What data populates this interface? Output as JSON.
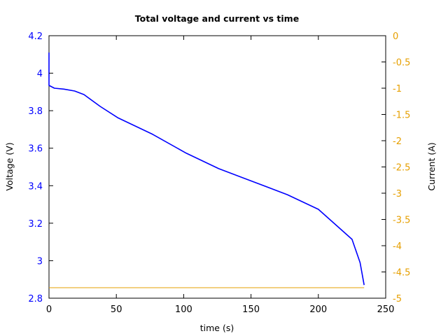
{
  "chart_data": {
    "type": "line",
    "title": "Total voltage and current vs time",
    "xlabel": "time (s)",
    "ylabel": "Voltage (V)",
    "y2label": "Current (A)",
    "xlim": [
      0,
      250
    ],
    "ylim": [
      2.8,
      4.2
    ],
    "y2lim": [
      -5,
      0
    ],
    "grid": false,
    "legend": "none",
    "x_ticks": [
      "0",
      "50",
      "100",
      "150",
      "200",
      "250"
    ],
    "y_ticks": [
      "2.8",
      "3",
      "3.2",
      "3.4",
      "3.6",
      "3.8",
      "4",
      "4.2"
    ],
    "y2_ticks": [
      "-5",
      "-4.5",
      "-4",
      "-3.5",
      "-3",
      "-2.5",
      "-2",
      "-1.5",
      "-1",
      "-0.5",
      "0"
    ],
    "series": [
      {
        "name": "Voltage",
        "axis": "left",
        "color": "#0000ff",
        "x": [
          0,
          0,
          4,
          11,
          19,
          26,
          38,
          51,
          77,
          102,
          126,
          177,
          200,
          225,
          231,
          234
        ],
        "values": [
          4.11,
          3.935,
          3.92,
          3.915,
          3.905,
          3.886,
          3.823,
          3.763,
          3.674,
          3.573,
          3.491,
          3.352,
          3.274,
          3.114,
          2.99,
          2.87
        ]
      },
      {
        "name": "Current",
        "axis": "right",
        "color": "#e69f00",
        "x": [
          0,
          234
        ],
        "values": [
          -4.8,
          -4.8
        ]
      }
    ]
  }
}
